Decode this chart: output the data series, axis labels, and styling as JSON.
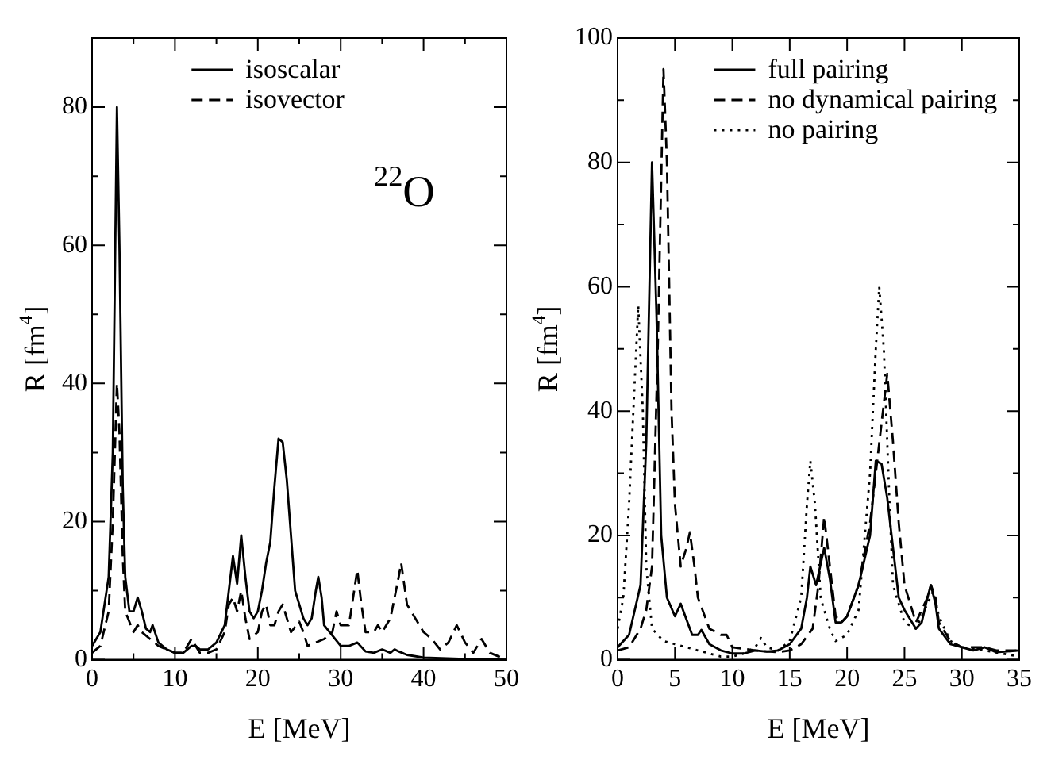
{
  "chart_data": [
    {
      "type": "line",
      "xlabel": "E [MeV]",
      "ylabel": "R [fm$^{4}$]",
      "annotations": [
        "$^{22}$O"
      ],
      "legend": "top",
      "marker": "none",
      "grid": false,
      "xlim": [
        0,
        50
      ],
      "ylim": [
        0,
        90
      ],
      "xticks": [
        0,
        {
          "value": 5,
          "label": null
        },
        10,
        {
          "value": 15,
          "label": null
        },
        20,
        {
          "value": 25,
          "label": null
        },
        30,
        {
          "value": 35,
          "label": null
        },
        40,
        {
          "value": 45,
          "label": null
        },
        50
      ],
      "yticks": [
        0,
        {
          "value": 10,
          "label": null
        },
        20,
        {
          "value": 30,
          "label": null
        },
        40,
        {
          "value": 50,
          "label": null
        },
        60,
        {
          "value": 70,
          "label": null
        },
        80
      ],
      "series": [
        {
          "name": "isoscalar",
          "color": "#000000",
          "line_style": "solid",
          "x": [
            0,
            1,
            2,
            2.5,
            2.8,
            3,
            3.3,
            3.7,
            4,
            4.5,
            5,
            5.5,
            6,
            6.5,
            7,
            7.3,
            8,
            9,
            10,
            11,
            12,
            12.5,
            13,
            14,
            15,
            16,
            16.5,
            17,
            17.5,
            18,
            18.5,
            19,
            19.5,
            20,
            20.5,
            21,
            21.5,
            22,
            22.5,
            23,
            23.5,
            24,
            24.5,
            25,
            25.5,
            26,
            26.5,
            27,
            27.3,
            27.7,
            28,
            29,
            30,
            31,
            32,
            33,
            34,
            35,
            36,
            36.5,
            37,
            38,
            40,
            45,
            50
          ],
          "values": [
            2,
            4,
            12,
            30,
            60,
            80,
            60,
            25,
            12,
            7,
            7,
            9,
            7,
            4.5,
            4,
            5,
            2.5,
            1.5,
            1,
            1,
            2,
            2,
            1.5,
            1.5,
            2.5,
            5,
            10,
            15,
            11,
            18,
            12,
            7,
            6,
            7,
            10,
            14,
            17,
            25,
            32,
            31.5,
            26,
            18,
            10,
            8,
            6,
            5,
            6,
            10,
            12,
            9,
            5,
            3.5,
            2,
            2,
            2.5,
            1.2,
            1,
            1.5,
            1,
            1.5,
            1.2,
            0.7,
            0.3,
            0.1,
            0
          ]
        },
        {
          "name": "isovector",
          "color": "#000000",
          "line_style": "dashed",
          "x": [
            0,
            1,
            2,
            2.5,
            3,
            3.3,
            3.7,
            4,
            5,
            5.5,
            6,
            7,
            8,
            9,
            10,
            11,
            12,
            12.5,
            13,
            14,
            15,
            16,
            16.5,
            17,
            17.5,
            18,
            18.5,
            19,
            20,
            20.5,
            21,
            21.5,
            22,
            22.5,
            23,
            23.5,
            24,
            25,
            25.5,
            26,
            27,
            28,
            29,
            29.5,
            30,
            31,
            32,
            32.5,
            33,
            34,
            34.5,
            35,
            36,
            37,
            37.3,
            38,
            39,
            40,
            41,
            42,
            43,
            44,
            45,
            46,
            47,
            48,
            50
          ],
          "values": [
            1,
            2,
            7,
            20,
            40,
            33,
            15,
            7,
            4,
            5,
            4,
            3,
            2,
            1.5,
            1,
            1,
            3,
            2,
            1,
            1,
            1.5,
            4,
            8,
            9,
            7,
            10,
            6,
            3,
            4,
            7,
            8,
            5,
            5,
            7,
            8,
            6,
            4,
            5.5,
            4,
            2,
            2.5,
            3,
            4,
            7,
            5,
            5,
            13,
            8,
            4,
            4,
            5,
            4,
            6,
            12,
            14,
            8,
            6,
            4,
            3,
            1.5,
            2.5,
            5,
            2.5,
            1,
            3,
            1,
            0
          ]
        }
      ]
    },
    {
      "type": "line",
      "xlabel": "E [MeV]",
      "ylabel": "R [fm$^{4}$]",
      "legend": "top",
      "marker": "none",
      "grid": false,
      "xlim": [
        0,
        35
      ],
      "ylim": [
        0,
        100
      ],
      "xticks": [
        0,
        5,
        10,
        15,
        20,
        25,
        30,
        35
      ],
      "yticks": [
        0,
        {
          "value": 10,
          "label": null
        },
        20,
        {
          "value": 30,
          "label": null
        },
        40,
        {
          "value": 50,
          "label": null
        },
        60,
        {
          "value": 70,
          "label": null
        },
        80,
        {
          "value": 90,
          "label": null
        },
        100
      ],
      "series": [
        {
          "name": "full pairing",
          "color": "#000000",
          "line_style": "solid",
          "x": [
            0,
            1,
            2,
            2.5,
            3,
            3.4,
            3.8,
            4.3,
            5,
            5.5,
            6,
            6.5,
            7,
            7.3,
            8,
            9,
            10,
            11,
            12,
            13,
            14,
            15,
            16,
            16.5,
            16.8,
            17.3,
            18,
            18.5,
            19,
            19.5,
            20,
            21,
            22,
            22.5,
            23,
            23.5,
            24,
            24.5,
            25,
            26,
            26.5,
            27,
            27.3,
            27.7,
            28,
            29,
            30,
            31,
            32,
            33,
            35
          ],
          "values": [
            2,
            4,
            12,
            35,
            80,
            55,
            20,
            10,
            7,
            9,
            6.5,
            4,
            4,
            4.8,
            2.5,
            1.5,
            1,
            1,
            1.5,
            1.3,
            1.5,
            2.5,
            5,
            10,
            15,
            12,
            18,
            13,
            6,
            6,
            7,
            12,
            20,
            32,
            31.5,
            26,
            18,
            10,
            8,
            5,
            6,
            10,
            12,
            9,
            5,
            2.5,
            2,
            1.5,
            2,
            1.2,
            1.5
          ]
        },
        {
          "name": "no dynamical pairing",
          "color": "#000000",
          "line_style": "dashed",
          "x": [
            0,
            1,
            2,
            2.5,
            3,
            3.5,
            4,
            4.3,
            4.7,
            5,
            5.5,
            6,
            6.3,
            6.7,
            7,
            8,
            9,
            9.5,
            10,
            12,
            14,
            15,
            16,
            17,
            17.5,
            18,
            18.5,
            19,
            19.5,
            20,
            21,
            22,
            22.5,
            23,
            23.5,
            24,
            24.5,
            25,
            26,
            27,
            27.3,
            27.7,
            28,
            29,
            30,
            32,
            33,
            35
          ],
          "values": [
            1.5,
            2,
            5,
            8,
            15,
            50,
            95,
            80,
            40,
            25,
            15,
            18,
            20.5,
            15,
            10,
            5,
            4,
            4,
            2,
            1.5,
            1.2,
            1.5,
            2.5,
            5,
            12,
            23,
            15,
            7,
            6,
            7,
            12,
            22,
            30,
            38,
            46,
            35,
            22,
            12,
            6,
            10,
            12,
            10,
            6,
            3,
            2,
            2,
            1.5,
            1.5
          ]
        },
        {
          "name": "no pairing",
          "color": "#000000",
          "line_style": "dotted",
          "x": [
            0,
            0.5,
            1,
            1.5,
            1.8,
            2.2,
            2.5,
            3,
            4,
            5,
            6,
            7,
            8,
            9,
            10,
            11,
            12,
            12.5,
            13,
            14,
            15,
            16,
            16.5,
            16.8,
            17.2,
            17.7,
            18,
            18.5,
            19,
            20,
            21,
            22,
            22.5,
            22.8,
            23.2,
            23.7,
            24,
            25,
            26,
            27,
            27.5,
            28,
            29,
            30,
            32,
            35
          ],
          "values": [
            5,
            10,
            25,
            45,
            57,
            40,
            15,
            5,
            3,
            2.5,
            2,
            1.5,
            1,
            0.5,
            0.5,
            1,
            2,
            3.5,
            2,
            1.5,
            3,
            10,
            25,
            32,
            25,
            10,
            8,
            5,
            3,
            4,
            8,
            30,
            50,
            60,
            50,
            25,
            12,
            6,
            5,
            9,
            11,
            7,
            3,
            2,
            1.5,
            0.5
          ]
        }
      ]
    }
  ]
}
